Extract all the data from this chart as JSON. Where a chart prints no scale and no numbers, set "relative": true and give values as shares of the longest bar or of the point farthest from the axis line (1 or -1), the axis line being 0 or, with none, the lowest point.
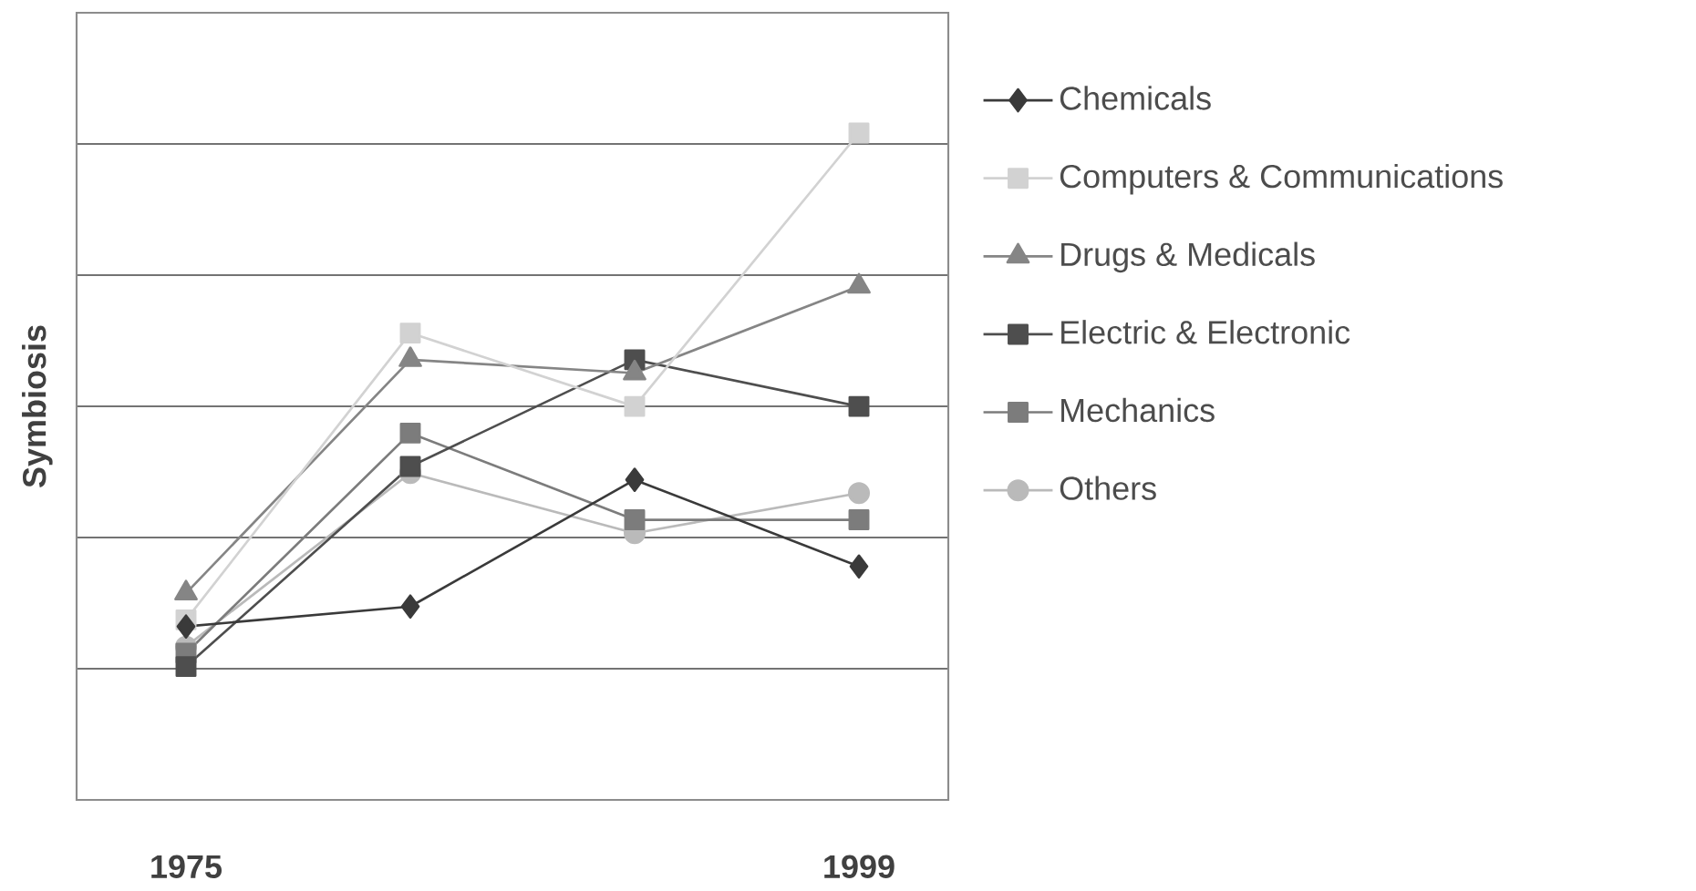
{
  "chart_data": {
    "type": "line",
    "ylabel": "Symbiosis",
    "categories": [
      "1975",
      null,
      null,
      "1999"
    ],
    "relative": true,
    "grid": "y",
    "legend": "right",
    "series": [
      {
        "name": "Chemicals",
        "color": "#3a3a3a",
        "marker": "diamond",
        "values": [
          0.26,
          0.29,
          0.48,
          0.35
        ]
      },
      {
        "name": "Computers & Communications",
        "color": "#d2d2d2",
        "marker": "square",
        "values": [
          0.27,
          0.7,
          0.59,
          1
        ]
      },
      {
        "name": "Drugs & Medicals",
        "color": "#858585",
        "marker": "triangle",
        "values": [
          0.31,
          0.66,
          0.64,
          0.77
        ]
      },
      {
        "name": "Electric & Electronic",
        "color": "#4e4e4e",
        "marker": "square",
        "values": [
          0.2,
          0.5,
          0.66,
          0.59
        ]
      },
      {
        "name": "Mechanics",
        "color": "#7c7c7c",
        "marker": "square",
        "values": [
          0.22,
          0.55,
          0.42,
          0.42
        ]
      },
      {
        "name": "Others",
        "color": "#bababa",
        "marker": "circle",
        "values": [
          0.23,
          0.49,
          0.4,
          0.46
        ]
      }
    ]
  }
}
